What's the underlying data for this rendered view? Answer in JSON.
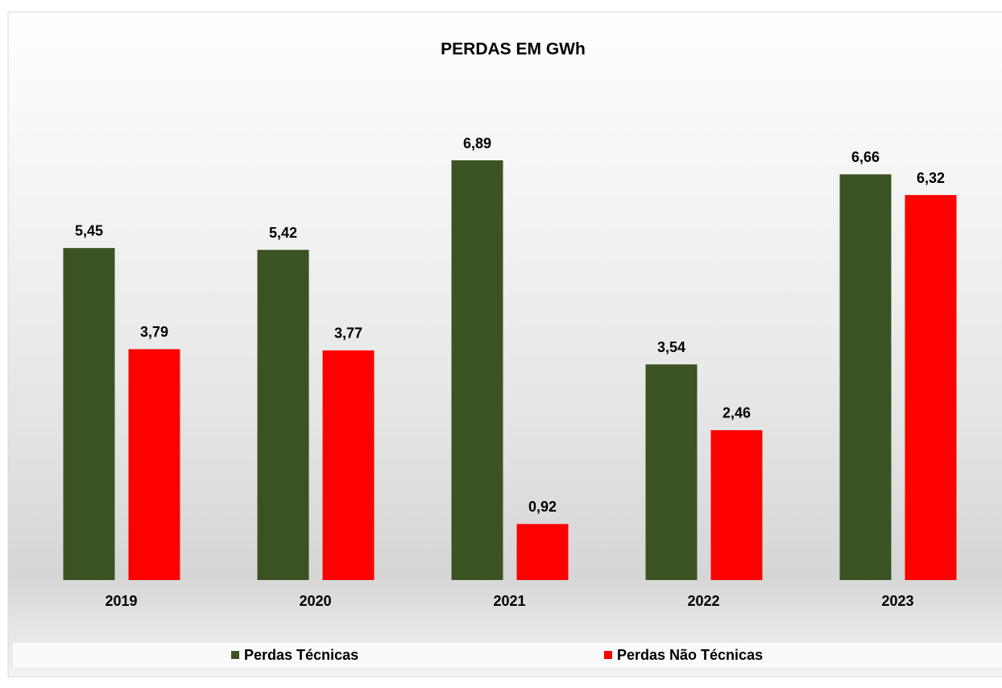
{
  "chart_data": {
    "type": "bar",
    "title": "PERDAS  EM GWh",
    "categories": [
      "2019",
      "2020",
      "2021",
      "2022",
      "2023"
    ],
    "series": [
      {
        "name": "Perdas Técnicas",
        "color": "#3b5323",
        "values": [
          5.45,
          5.42,
          6.89,
          3.54,
          6.66
        ],
        "value_labels": [
          "5,45",
          "5,42",
          "6,89",
          "3,54",
          "6,66"
        ]
      },
      {
        "name": "Perdas Não Técnicas",
        "color": "#ff0000",
        "values": [
          3.79,
          3.77,
          0.92,
          2.46,
          6.32
        ],
        "value_labels": [
          "3,79",
          "3,77",
          "0,92",
          "2,46",
          "6,32"
        ]
      }
    ],
    "legend": "bottom"
  }
}
